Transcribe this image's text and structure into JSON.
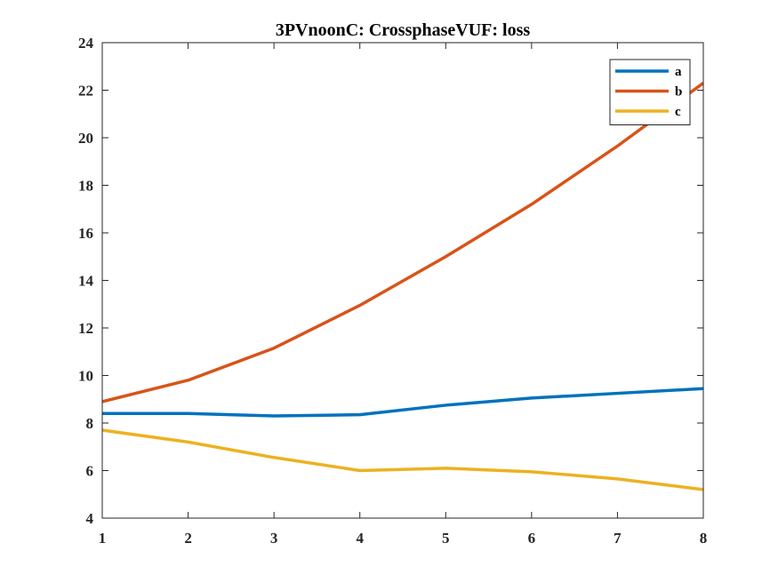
{
  "chart_data": {
    "type": "line",
    "title": "3PVnoonC: CrossphaseVUF: loss",
    "xlabel": "",
    "ylabel": "",
    "x": [
      1,
      2,
      3,
      4,
      5,
      6,
      7,
      8
    ],
    "xlim": [
      1,
      8
    ],
    "ylim": [
      4,
      24
    ],
    "xticks": [
      1,
      2,
      3,
      4,
      5,
      6,
      7,
      8
    ],
    "yticks": [
      4,
      6,
      8,
      10,
      12,
      14,
      16,
      18,
      20,
      22,
      24
    ],
    "grid": false,
    "legend_position": "top-right",
    "series": [
      {
        "name": "a",
        "color": "#0072BD",
        "values": [
          8.4,
          8.4,
          8.3,
          8.35,
          8.75,
          9.05,
          9.25,
          9.45
        ]
      },
      {
        "name": "b",
        "color": "#D95319",
        "values": [
          8.9,
          9.8,
          11.15,
          12.95,
          15.0,
          17.2,
          19.65,
          22.3
        ]
      },
      {
        "name": "c",
        "color": "#EDB120",
        "values": [
          7.7,
          7.2,
          6.55,
          6.0,
          6.1,
          5.95,
          5.65,
          5.2
        ]
      }
    ]
  }
}
